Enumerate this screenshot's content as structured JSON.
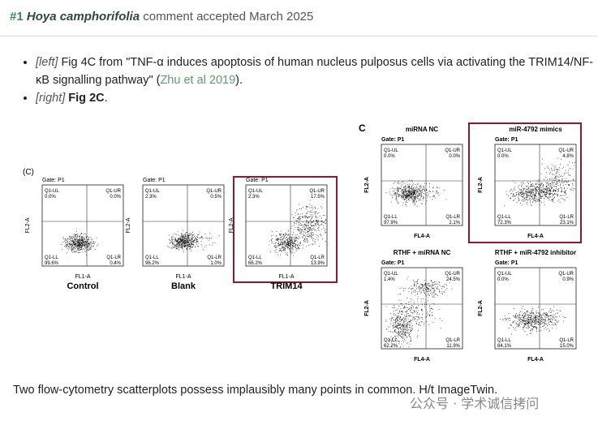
{
  "header": {
    "number": "#1",
    "species": "Hoya camphorifolia",
    "text": "comment accepted March 2025"
  },
  "bullets": [
    {
      "tag": "[left]",
      "text": "Fig 4C from \"TNF-α induces apoptosis of human nucleus pulposus cells via activating the TRIM14/NF-κB signalling pathway\" (",
      "link": "Zhu et al 2019",
      "tail": ")."
    },
    {
      "tag": "[right]",
      "bold": "Fig 2C",
      "tail": "."
    }
  ],
  "figure_left": {
    "label": "(C)",
    "panels": [
      {
        "gate": "Gate: P1",
        "caption": "Control",
        "xlabel": "FL1-A",
        "ylabel": "FL2-A",
        "quadrants": [
          {
            "name": "Q1-UL",
            "value": "0.0%"
          },
          {
            "name": "Q1-UR",
            "value": "0.0%"
          },
          {
            "name": "Q1-LL",
            "value": "99.6%"
          },
          {
            "name": "Q1-LR",
            "value": "0.4%"
          }
        ]
      },
      {
        "gate": "Gate: P1",
        "caption": "Blank",
        "xlabel": "FL1-A",
        "ylabel": "FL2-A",
        "quadrants": [
          {
            "name": "Q1-UL",
            "value": "2.3%"
          },
          {
            "name": "Q1-UR",
            "value": "0.5%"
          },
          {
            "name": "Q1-LL",
            "value": "96.2%"
          },
          {
            "name": "Q1-LR",
            "value": "1.0%"
          }
        ]
      },
      {
        "gate": "Gate: P1",
        "caption": "TRIM14",
        "xlabel": "FL1-A",
        "ylabel": "FL2-A",
        "quadrants": [
          {
            "name": "Q1-UL",
            "value": "2.3%"
          },
          {
            "name": "Q1-UR",
            "value": "17.5%"
          },
          {
            "name": "Q1-LL",
            "value": "66.2%"
          },
          {
            "name": "Q1-LR",
            "value": "13.9%"
          }
        ]
      }
    ]
  },
  "figure_right": {
    "label": "C",
    "panels": [
      {
        "title": "miRNA NC",
        "gate": "Gate: P1",
        "xlabel": "FL4-A",
        "ylabel": "FL2-A",
        "quadrants": [
          {
            "name": "Q1-UL",
            "value": "0.0%"
          },
          {
            "name": "Q1-UR",
            "value": "0.0%"
          },
          {
            "name": "Q1-LL",
            "value": "97.9%"
          },
          {
            "name": "Q1-LR",
            "value": "2.1%"
          }
        ]
      },
      {
        "title": "miR-4792 mimics",
        "gate": "Gate: P1",
        "xlabel": "FL4-A",
        "ylabel": "FL2-A",
        "quadrants": [
          {
            "name": "Q1-UL",
            "value": "0.0%"
          },
          {
            "name": "Q1-UR",
            "value": "4.8%"
          },
          {
            "name": "Q1-LL",
            "value": "72.3%"
          },
          {
            "name": "Q1-LR",
            "value": "23.1%"
          }
        ]
      },
      {
        "title": "RTHF + miRNA NC",
        "gate": "Gate: P1",
        "xlabel": "FL4-A",
        "ylabel": "FL2-A",
        "quadrants": [
          {
            "name": "Q1-UL",
            "value": "1.4%"
          },
          {
            "name": "Q1-UR",
            "value": "24.5%"
          },
          {
            "name": "Q1-LL",
            "value": "62.2%"
          },
          {
            "name": "Q1-LR",
            "value": "11.9%"
          }
        ]
      },
      {
        "title": "RTHF + miR-4792 inhibitor",
        "gate": "Gate: P1",
        "xlabel": "FL4-A",
        "ylabel": "FL2-A",
        "quadrants": [
          {
            "name": "Q1-UL",
            "value": "0.0%"
          },
          {
            "name": "Q1-UR",
            "value": "0.9%"
          },
          {
            "name": "Q1-LL",
            "value": "84.1%"
          },
          {
            "name": "Q1-LR",
            "value": "15.0%"
          }
        ]
      }
    ]
  },
  "footer": "Two flow-cytometry scatterplots possess implausibly many points in common. H/t ImageTwin.",
  "watermark": "公众号 · 学术诚信拷问"
}
